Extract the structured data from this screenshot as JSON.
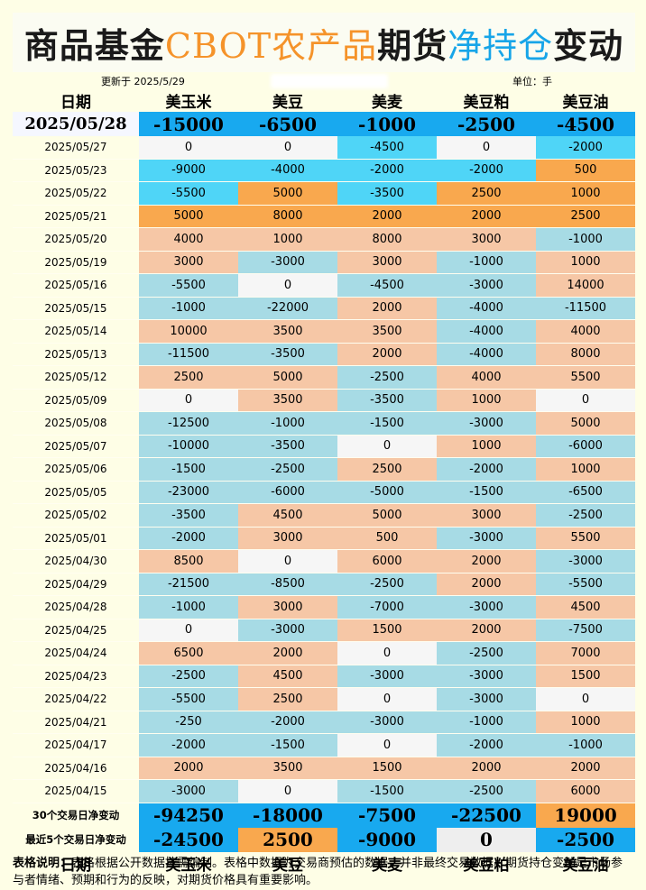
{
  "title": {
    "part1": "商品基金",
    "part2": "CBOT农产品",
    "part3": "期货",
    "part4": "净持仓",
    "part5": "变动",
    "colors": {
      "dark": "#1a1a1a",
      "orange": "#f5932a",
      "blue": "#17a5e8"
    }
  },
  "meta": {
    "updated": "更新于 2025/5/29",
    "unit": "单位：手"
  },
  "columns": {
    "date": "日期",
    "c1": "美玉米",
    "c2": "美豆",
    "c3": "美麦",
    "c4": "美豆粕",
    "c5": "美豆油"
  },
  "colors": {
    "pos": "#f6c7a6",
    "neg": "#a7dbe5",
    "zero": "#f6f6f6",
    "hi_pos": "#f9a84e",
    "hi_neg": "#4fd5f7",
    "strong_pos": "#f9a84e",
    "strong_neg": "#18a9ef"
  },
  "latest": {
    "date": "2025/05/28",
    "values": [
      -15000,
      -6500,
      -1000,
      -2500,
      -4500
    ]
  },
  "rows": [
    {
      "date": "2025/05/27",
      "values": [
        0,
        0,
        -4500,
        0,
        -2000
      ]
    },
    {
      "date": "2025/05/23",
      "values": [
        -9000,
        -4000,
        -2000,
        -2000,
        500
      ]
    },
    {
      "date": "2025/05/22",
      "values": [
        -5500,
        5000,
        -3500,
        2500,
        1000
      ]
    },
    {
      "date": "2025/05/21",
      "values": [
        5000,
        8000,
        2000,
        2000,
        2500
      ]
    },
    {
      "date": "2025/05/20",
      "values": [
        4000,
        1000,
        8000,
        3000,
        -1000
      ]
    },
    {
      "date": "2025/05/19",
      "values": [
        3000,
        -3000,
        3000,
        -1000,
        1000
      ]
    },
    {
      "date": "2025/05/16",
      "values": [
        -5500,
        0,
        -4500,
        -3000,
        14000
      ]
    },
    {
      "date": "2025/05/15",
      "values": [
        -1000,
        -22000,
        2000,
        -4000,
        -11500
      ]
    },
    {
      "date": "2025/05/14",
      "values": [
        10000,
        3500,
        3500,
        -4000,
        4000
      ]
    },
    {
      "date": "2025/05/13",
      "values": [
        -11500,
        -3500,
        2000,
        -4000,
        8000
      ]
    },
    {
      "date": "2025/05/12",
      "values": [
        2500,
        5000,
        -2500,
        4000,
        5500
      ]
    },
    {
      "date": "2025/05/09",
      "values": [
        0,
        3500,
        -3500,
        1000,
        0
      ]
    },
    {
      "date": "2025/05/08",
      "values": [
        -12500,
        -1000,
        -1500,
        -3000,
        5000
      ]
    },
    {
      "date": "2025/05/07",
      "values": [
        -10000,
        -3500,
        0,
        1000,
        -6000
      ]
    },
    {
      "date": "2025/05/06",
      "values": [
        -1500,
        -2500,
        2500,
        -2000,
        1000
      ]
    },
    {
      "date": "2025/05/05",
      "values": [
        -23000,
        -6000,
        -5000,
        -1500,
        -6500
      ]
    },
    {
      "date": "2025/05/02",
      "values": [
        -3500,
        4500,
        5000,
        3000,
        -2500
      ]
    },
    {
      "date": "2025/05/01",
      "values": [
        -2000,
        3000,
        500,
        -3000,
        5500
      ]
    },
    {
      "date": "2025/04/30",
      "values": [
        8500,
        0,
        6000,
        2000,
        -3000
      ]
    },
    {
      "date": "2025/04/29",
      "values": [
        -21500,
        -8500,
        -2500,
        2000,
        -5500
      ]
    },
    {
      "date": "2025/04/28",
      "values": [
        -1000,
        3000,
        -7000,
        -3000,
        4500
      ]
    },
    {
      "date": "2025/04/25",
      "values": [
        0,
        -3000,
        1500,
        2000,
        -7500
      ]
    },
    {
      "date": "2025/04/24",
      "values": [
        6500,
        2000,
        0,
        -2500,
        7000
      ]
    },
    {
      "date": "2025/04/23",
      "values": [
        -2500,
        4500,
        -3000,
        -3000,
        1500
      ]
    },
    {
      "date": "2025/04/22",
      "values": [
        -5500,
        2500,
        0,
        -3000,
        0
      ]
    },
    {
      "date": "2025/04/21",
      "values": [
        -250,
        -2000,
        -3000,
        -1000,
        1000
      ]
    },
    {
      "date": "2025/04/17",
      "values": [
        -2000,
        -1500,
        0,
        -2000,
        -1000
      ]
    },
    {
      "date": "2025/04/16",
      "values": [
        2000,
        3500,
        1500,
        2000,
        2000
      ]
    },
    {
      "date": "2025/04/15",
      "values": [
        -3000,
        0,
        -1500,
        -2500,
        6000
      ]
    }
  ],
  "summary30": {
    "label": "30个交易日净变动",
    "values": [
      -94250,
      -18000,
      -7500,
      -22500,
      19000
    ]
  },
  "summary5": {
    "label": "最近5个交易日净变动",
    "values": [
      -24500,
      2500,
      -9000,
      0,
      -2500
    ]
  },
  "note": {
    "label": "表格说明：",
    "text": "表格根据公开数据按需编制。表格中数据为交易商预估的数据，并非最终交易数据。期货持仓变动是市场参与者情绪、预期和行为的反映，对期货价格具有重要影响。"
  }
}
